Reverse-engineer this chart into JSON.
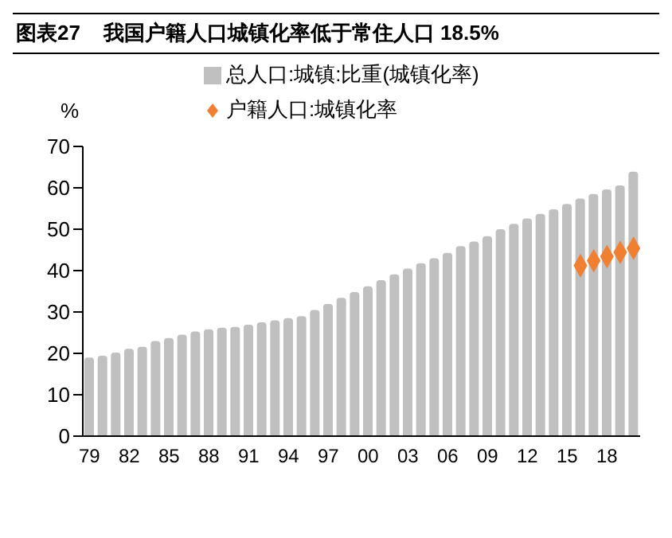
{
  "chart_data": {
    "type": "bar",
    "title": "图表27    我国户籍人口城镇化率低于常住人口 18.5%",
    "ylabel": "%",
    "categories": [
      "79",
      null,
      null,
      "82",
      null,
      null,
      "85",
      null,
      null,
      "88",
      null,
      null,
      "91",
      null,
      null,
      "94",
      null,
      null,
      "97",
      null,
      null,
      "00",
      null,
      null,
      "03",
      null,
      null,
      "06",
      null,
      null,
      "09",
      null,
      null,
      "12",
      null,
      null,
      "15",
      null,
      null,
      "18",
      null,
      null
    ],
    "series": [
      {
        "name": "总人口:城镇:比重(城镇化率)",
        "type": "bar",
        "color": "#c0c0c0",
        "values": [
          19.0,
          19.4,
          20.2,
          21.1,
          21.6,
          23.0,
          23.7,
          24.5,
          25.3,
          25.8,
          26.2,
          26.4,
          26.9,
          27.5,
          28.0,
          28.5,
          29.0,
          30.5,
          31.9,
          33.4,
          34.8,
          36.2,
          37.7,
          39.1,
          40.5,
          41.8,
          43.0,
          44.3,
          45.9,
          47.0,
          48.3,
          50.0,
          51.3,
          52.6,
          53.7,
          54.8,
          56.1,
          57.4,
          58.5,
          59.6,
          60.6,
          63.9
        ]
      },
      {
        "name": "户籍人口:城镇化率",
        "type": "scatter",
        "color": "#f07f32",
        "marker": "diamond",
        "values": [
          null,
          null,
          null,
          null,
          null,
          null,
          null,
          null,
          null,
          null,
          null,
          null,
          null,
          null,
          null,
          null,
          null,
          null,
          null,
          null,
          null,
          null,
          null,
          null,
          null,
          null,
          null,
          null,
          null,
          null,
          null,
          null,
          null,
          null,
          null,
          null,
          null,
          41.2,
          42.4,
          43.4,
          44.4,
          45.4
        ]
      }
    ],
    "ylim": [
      0,
      70
    ],
    "yticks": [
      0,
      10,
      20,
      30,
      40,
      50,
      60,
      70
    ],
    "grid": false,
    "legend": "top"
  }
}
